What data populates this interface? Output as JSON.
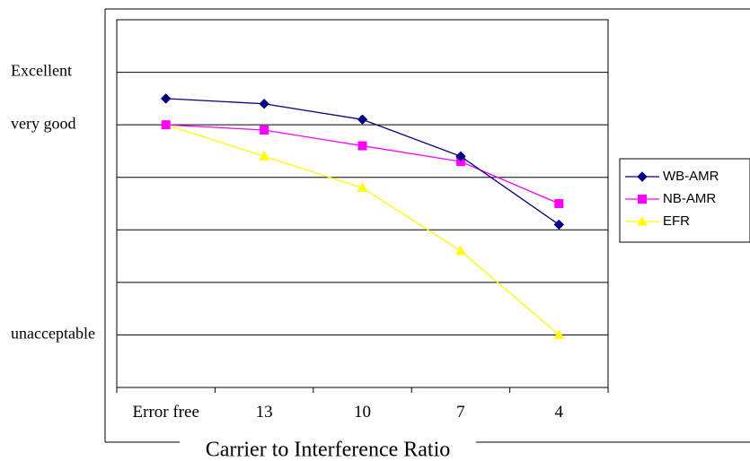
{
  "chart_data": {
    "type": "line",
    "title": "",
    "xlabel": "Carrier to Interference Ratio",
    "ylabel": "",
    "categories": [
      "Error free",
      "13",
      "10",
      "7",
      "4"
    ],
    "y_levels": [
      {
        "label": "Excellent",
        "value": 5
      },
      {
        "label": "very good",
        "value": 4
      },
      {
        "label": "unacceptable",
        "value": 0
      }
    ],
    "ylim": [
      -1,
      6
    ],
    "grid": true,
    "legend_position": "right",
    "series": [
      {
        "name": "WB-AMR",
        "color": "#000080",
        "marker": "diamond",
        "values": [
          4.5,
          4.4,
          4.1,
          3.4,
          2.1
        ]
      },
      {
        "name": "NB-AMR",
        "color": "#ff00ff",
        "marker": "square",
        "values": [
          4.0,
          3.9,
          3.6,
          3.3,
          2.5
        ]
      },
      {
        "name": "EFR",
        "color": "#ffff00",
        "marker": "triangle",
        "values": [
          4.0,
          3.4,
          2.8,
          1.6,
          0.0
        ]
      }
    ]
  }
}
